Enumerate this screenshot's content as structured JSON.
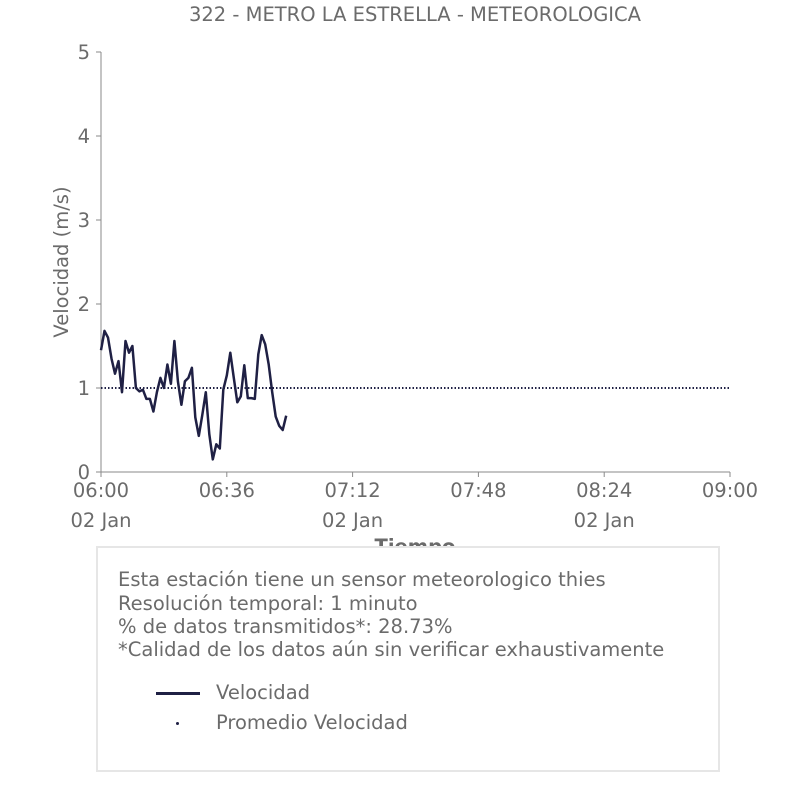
{
  "chart_data": {
    "type": "line",
    "title": "322 - METRO LA ESTRELLA - METEOROLOGICA",
    "xlabel": "Tiempo",
    "ylabel": "Velocidad (m/s)",
    "ylim": [
      0,
      5
    ],
    "xlim": [
      "06:00",
      "09:00"
    ],
    "y_ticks": [
      "0",
      "1",
      "2",
      "3",
      "4",
      "5"
    ],
    "x_ticks": [
      {
        "time": "06:00",
        "date": "02 Jan"
      },
      {
        "time": "06:36",
        "date": ""
      },
      {
        "time": "07:12",
        "date": "02 Jan"
      },
      {
        "time": "07:48",
        "date": ""
      },
      {
        "time": "08:24",
        "date": "02 Jan"
      },
      {
        "time": "09:00",
        "date": ""
      }
    ],
    "grid": false,
    "series": [
      {
        "name": "Velocidad",
        "color": "#1f2044",
        "style": "solid",
        "points": [
          [
            "06:00",
            1.45
          ],
          [
            "06:01",
            1.68
          ],
          [
            "06:02",
            1.6
          ],
          [
            "06:03",
            1.35
          ],
          [
            "06:04",
            1.17
          ],
          [
            "06:05",
            1.32
          ],
          [
            "06:06",
            0.95
          ],
          [
            "06:07",
            1.56
          ],
          [
            "06:08",
            1.42
          ],
          [
            "06:09",
            1.5
          ],
          [
            "06:10",
            1.0
          ],
          [
            "06:11",
            0.96
          ],
          [
            "06:12",
            0.98
          ],
          [
            "06:13",
            0.87
          ],
          [
            "06:14",
            0.87
          ],
          [
            "06:15",
            0.72
          ],
          [
            "06:16",
            0.95
          ],
          [
            "06:17",
            1.12
          ],
          [
            "06:18",
            1.0
          ],
          [
            "06:19",
            1.28
          ],
          [
            "06:20",
            1.05
          ],
          [
            "06:21",
            1.56
          ],
          [
            "06:22",
            1.08
          ],
          [
            "06:23",
            0.8
          ],
          [
            "06:24",
            1.08
          ],
          [
            "06:25",
            1.12
          ],
          [
            "06:26",
            1.24
          ],
          [
            "06:27",
            0.65
          ],
          [
            "06:28",
            0.43
          ],
          [
            "06:29",
            0.68
          ],
          [
            "06:30",
            0.95
          ],
          [
            "06:31",
            0.45
          ],
          [
            "06:32",
            0.15
          ],
          [
            "06:33",
            0.33
          ],
          [
            "06:34",
            0.28
          ],
          [
            "06:35",
            0.98
          ],
          [
            "06:36",
            1.15
          ],
          [
            "06:37",
            1.42
          ],
          [
            "06:38",
            1.12
          ],
          [
            "06:39",
            0.83
          ],
          [
            "06:40",
            0.9
          ],
          [
            "06:41",
            1.27
          ],
          [
            "06:42",
            0.88
          ],
          [
            "06:43",
            0.88
          ],
          [
            "06:44",
            0.87
          ],
          [
            "06:45",
            1.4
          ],
          [
            "06:46",
            1.63
          ],
          [
            "06:47",
            1.52
          ],
          [
            "06:48",
            1.28
          ],
          [
            "06:49",
            0.95
          ],
          [
            "06:50",
            0.66
          ],
          [
            "06:51",
            0.55
          ],
          [
            "06:52",
            0.5
          ],
          [
            "06:53",
            0.67
          ]
        ]
      },
      {
        "name": "Promedio Velocidad",
        "color": "#1f2044",
        "style": "dotted",
        "points": [
          [
            "06:00",
            1.0
          ],
          [
            "09:00",
            1.0
          ]
        ]
      }
    ]
  },
  "info": {
    "line1": "Esta estación tiene un sensor meteorologico thies",
    "line2": "Resolución temporal: 1 minuto",
    "line3": "% de datos transmitidos*: 28.73%",
    "line4": "*Calidad de los datos aún sin verificar exhaustivamente"
  },
  "legend": {
    "line_label": "Velocidad",
    "avg_label": "Promedio Velocidad"
  }
}
